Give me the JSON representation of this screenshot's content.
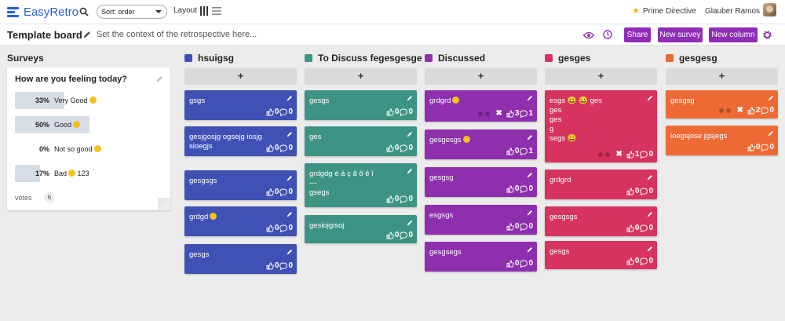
{
  "app": {
    "name": "EasyRetro"
  },
  "topbar": {
    "sort_value": "Sort: order",
    "layout_label": "Layout",
    "prime_directive": "Prime Directive",
    "user_name": "Glauber Ramos"
  },
  "board": {
    "title": "Template board",
    "context": "Set the context of the retrospective here...",
    "share_label": "Share",
    "new_survey_label": "New survey",
    "new_column_label": "New column"
  },
  "survey": {
    "heading": "Surveys",
    "question": "How are you feeling today?",
    "options": [
      {
        "pct": "33%",
        "label": "Very Good",
        "fraction": 0.33,
        "emoji": true
      },
      {
        "pct": "50%",
        "label": "Good",
        "fraction": 0.5,
        "emoji": true
      },
      {
        "pct": "0%",
        "label": "Not so good",
        "fraction": 0.0,
        "emoji": true
      },
      {
        "pct": "17%",
        "label": "Bad",
        "suffix": "123",
        "fraction": 0.17,
        "emoji": true
      }
    ],
    "votes_label": "votes",
    "votes_count": "6"
  },
  "columns": [
    {
      "name": "hsuigsg",
      "color": "#3f51b5",
      "add": "+",
      "cards": [
        {
          "text": "gsgs",
          "likes": "0",
          "comments": "0"
        },
        {
          "text": "gesjgosjg ogsejg iosjg sioegjs",
          "likes": "0",
          "comments": "0"
        },
        {
          "text": "gesgsgs",
          "likes": "0",
          "comments": "0"
        },
        {
          "text": "grdgd",
          "emoji": true,
          "likes": "0",
          "comments": "0"
        },
        {
          "text": "gesgs",
          "likes": "0",
          "comments": "0"
        }
      ]
    },
    {
      "name": "To Discuss fegesgesge",
      "color": "#3d9484",
      "add": "+",
      "cards": [
        {
          "text": "gesgs",
          "likes": "0",
          "comments": "0"
        },
        {
          "text": "ges",
          "likes": "0",
          "comments": "0"
        },
        {
          "text": "grdgdg é á ç ã õ ê î\n---\ngsegs",
          "likes": "0",
          "comments": "0"
        },
        {
          "text": "gesiojgisoj",
          "likes": "0",
          "comments": "0"
        }
      ]
    },
    {
      "name": "Discussed",
      "color": "#8e2fae",
      "add": "+",
      "cards": [
        {
          "text": "grdgrd",
          "emoji": true,
          "likes": "3",
          "comments": "1",
          "dots": true,
          "x": "✖"
        },
        {
          "text": "gesgesgs",
          "emoji": true,
          "likes": "0",
          "comments": "1"
        },
        {
          "text": "gesgsg",
          "likes": "0",
          "comments": "0"
        },
        {
          "text": "esgsgs",
          "likes": "0",
          "comments": "0"
        },
        {
          "text": "gesgsegs",
          "likes": "0",
          "comments": "0"
        }
      ]
    },
    {
      "name": "gesges",
      "color": "#d6335f",
      "add": "+",
      "cards": [
        {
          "text": "esgs 😀 😀 ges\nges\nges\ng\nsegs 😀",
          "likes": "1",
          "comments": "0",
          "dots": true,
          "x": "✖"
        },
        {
          "text": "grdgrd",
          "likes": "0",
          "comments": "0"
        },
        {
          "text": "gesgsgs",
          "likes": "0",
          "comments": "0"
        },
        {
          "text": "gesgs",
          "likes": "0",
          "comments": "0"
        }
      ]
    },
    {
      "name": "gesgesg",
      "color": "#ee6a35",
      "add": "+",
      "cards": [
        {
          "text": "gesgsg",
          "likes": "2",
          "comments": "0",
          "dots": true,
          "x": "✖"
        },
        {
          "text": "ioegsjose jgsjegs",
          "likes": "0",
          "comments": "0"
        }
      ]
    }
  ]
}
